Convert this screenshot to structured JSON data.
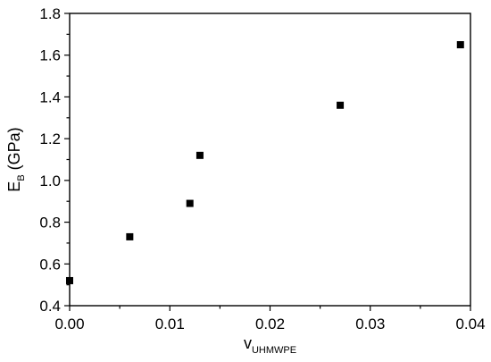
{
  "chart_data": {
    "type": "scatter",
    "title": "",
    "xlabel": {
      "main": "v",
      "sub": "UHMWPE"
    },
    "ylabel": {
      "main": "E",
      "sub": "B",
      "suffix": " (GPa)"
    },
    "xlim": [
      0.0,
      0.04
    ],
    "ylim": [
      0.4,
      1.8
    ],
    "x_ticks": [
      "0.00",
      "0.01",
      "0.02",
      "0.03",
      "0.04"
    ],
    "y_ticks": [
      "0.4",
      "0.6",
      "0.8",
      "1.0",
      "1.2",
      "1.4",
      "1.6",
      "1.8"
    ],
    "grid": false,
    "legend": "none",
    "marker": "square",
    "marker_color": "#000000",
    "points": [
      {
        "x": 0.0,
        "y": 0.52
      },
      {
        "x": 0.006,
        "y": 0.73
      },
      {
        "x": 0.012,
        "y": 0.89
      },
      {
        "x": 0.013,
        "y": 1.12
      },
      {
        "x": 0.027,
        "y": 1.36
      },
      {
        "x": 0.039,
        "y": 1.65
      }
    ]
  }
}
